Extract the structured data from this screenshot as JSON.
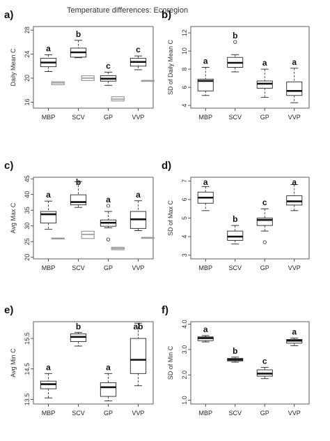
{
  "figure_title": "Temperature differences: Ecoregion",
  "chart_data": [
    {
      "panel": "a)",
      "type": "box",
      "ylabel": "Daily Mean C",
      "categories": [
        "MBP",
        "SCV",
        "GP",
        "VVP"
      ],
      "ylim": [
        15.0,
        28.6
      ],
      "yticks": [
        16,
        20,
        24,
        28
      ],
      "boxes": [
        {
          "min": 21.1,
          "q1": 21.9,
          "median": 22.6,
          "q3": 23.3,
          "max": 23.9,
          "outliers": []
        },
        {
          "min": 23.4,
          "q1": 23.5,
          "median": 24.3,
          "q3": 25.0,
          "max": 26.3,
          "outliers": []
        },
        {
          "min": 18.8,
          "q1": 19.5,
          "median": 19.9,
          "q3": 20.4,
          "max": 21.0,
          "outliers": []
        },
        {
          "min": 21.4,
          "q1": 22.0,
          "median": 22.7,
          "q3": 23.3,
          "max": 23.7,
          "outliers": []
        }
      ],
      "reference_boxes": [
        {
          "q1": 18.9,
          "median": 19.2,
          "q3": 19.4
        },
        {
          "q1": 19.6,
          "median": 20.0,
          "q3": 20.4
        },
        {
          "q1": 16.2,
          "median": 16.5,
          "q3": 16.9
        },
        {
          "q1": 19.6,
          "median": 19.6,
          "q3": 19.6
        }
      ],
      "letters": [
        "a",
        "b",
        "c",
        "c"
      ]
    },
    {
      "panel": "b)",
      "type": "box",
      "ylabel": "SD of Daily Mean C",
      "categories": [
        "MBP",
        "SCV",
        "GP",
        "VVP"
      ],
      "ylim": [
        3.7,
        12.7
      ],
      "yticks": [
        4,
        6,
        8,
        10,
        12
      ],
      "boxes": [
        {
          "min": 5.1,
          "q1": 5.6,
          "median": 6.7,
          "q3": 6.9,
          "max": 8.2,
          "outliers": []
        },
        {
          "min": 7.7,
          "q1": 8.2,
          "median": 8.7,
          "q3": 9.3,
          "max": 9.6,
          "outliers": [
            11.0
          ]
        },
        {
          "min": 4.9,
          "q1": 5.9,
          "median": 6.4,
          "q3": 6.7,
          "max": 8.0,
          "outliers": []
        },
        {
          "min": 4.3,
          "q1": 5.1,
          "median": 5.6,
          "q3": 6.6,
          "max": 8.1,
          "outliers": []
        }
      ],
      "letters": [
        "a",
        "b",
        "a",
        "a"
      ]
    },
    {
      "panel": "c)",
      "type": "box",
      "ylabel": "Avg Max C",
      "categories": [
        "MBP",
        "SCV",
        "GP",
        "VVP"
      ],
      "ylim": [
        19.5,
        45.5
      ],
      "yticks": [
        20,
        25,
        30,
        35,
        40,
        45
      ],
      "boxes": [
        {
          "min": 28.9,
          "q1": 30.9,
          "median": 33.7,
          "q3": 34.6,
          "max": 37.9,
          "outliers": []
        },
        {
          "min": 35.9,
          "q1": 36.7,
          "median": 37.6,
          "q3": 39.9,
          "max": 44.1,
          "outliers": []
        },
        {
          "min": 29.4,
          "q1": 29.9,
          "median": 31.0,
          "q3": 31.9,
          "max": 34.6,
          "outliers": [
            36.4,
            25.7
          ]
        },
        {
          "min": 28.5,
          "q1": 29.2,
          "median": 32.1,
          "q3": 34.6,
          "max": 38.0,
          "outliers": []
        }
      ],
      "reference_boxes": [
        {
          "q1": 26.1,
          "median": 26.1,
          "q3": 26.1
        },
        {
          "q1": 26.0,
          "median": 27.3,
          "q3": 28.3
        },
        {
          "q1": 22.4,
          "median": 22.8,
          "q3": 23.2
        },
        {
          "q1": 26.3,
          "median": 26.3,
          "q3": 26.3
        }
      ],
      "letters": [
        "a",
        "b",
        "a",
        "a"
      ]
    },
    {
      "panel": "d)",
      "type": "box",
      "ylabel": "SD of Max C",
      "categories": [
        "MBP",
        "SCV",
        "GP",
        "VVP"
      ],
      "ylim": [
        2.8,
        7.2
      ],
      "yticks": [
        3,
        4,
        5,
        6,
        7
      ],
      "boxes": [
        {
          "min": 5.4,
          "q1": 5.8,
          "median": 6.1,
          "q3": 6.4,
          "max": 6.7,
          "outliers": []
        },
        {
          "min": 3.6,
          "q1": 3.8,
          "median": 4.0,
          "q3": 4.3,
          "max": 4.6,
          "outliers": []
        },
        {
          "min": 4.3,
          "q1": 4.6,
          "median": 4.9,
          "q3": 5.0,
          "max": 5.5,
          "outliers": [
            3.7
          ]
        },
        {
          "min": 5.4,
          "q1": 5.7,
          "median": 5.9,
          "q3": 6.2,
          "max": 6.8,
          "outliers": []
        }
      ],
      "letters": [
        "a",
        "b",
        "c",
        "a"
      ]
    },
    {
      "panel": "e)",
      "type": "box",
      "ylabel": "Avg Min C",
      "categories": [
        "MBP",
        "SCV",
        "GP",
        "VVP"
      ],
      "ylim": [
        13.35,
        16.05
      ],
      "yticks": [
        13.5,
        14.5,
        15.5
      ],
      "yticklabels": [
        "13.5",
        "14.5",
        "15.5"
      ],
      "boxes": [
        {
          "min": 13.55,
          "q1": 13.85,
          "median": 14.0,
          "q3": 14.1,
          "max": 14.35,
          "outliers": []
        },
        {
          "min": 15.25,
          "q1": 15.4,
          "median": 15.55,
          "q3": 15.65,
          "max": 15.7,
          "outliers": []
        },
        {
          "min": 13.45,
          "q1": 13.6,
          "median": 13.9,
          "q3": 14.05,
          "max": 14.35,
          "outliers": []
        },
        {
          "min": 13.95,
          "q1": 14.35,
          "median": 14.8,
          "q3": 15.5,
          "max": 16.0,
          "outliers": []
        }
      ],
      "letters": [
        "a",
        "b",
        "a",
        "ab"
      ]
    },
    {
      "panel": "f)",
      "type": "box",
      "ylabel": "SD of Min C",
      "categories": [
        "MBP",
        "SCV",
        "GP",
        "VVP"
      ],
      "ylim": [
        0.85,
        4.1
      ],
      "yticks": [
        1.0,
        2.0,
        3.0,
        4.0
      ],
      "yticklabels": [
        "1.0",
        "2.0",
        "3.0",
        "4.0"
      ],
      "boxes": [
        {
          "min": 3.3,
          "q1": 3.35,
          "median": 3.45,
          "q3": 3.5,
          "max": 3.55,
          "outliers": []
        },
        {
          "min": 2.5,
          "q1": 2.55,
          "median": 2.6,
          "q3": 2.65,
          "max": 2.7,
          "outliers": []
        },
        {
          "min": 1.85,
          "q1": 1.95,
          "median": 2.05,
          "q3": 2.2,
          "max": 2.3,
          "outliers": []
        },
        {
          "min": 3.15,
          "q1": 3.25,
          "median": 3.35,
          "q3": 3.4,
          "max": 3.45,
          "outliers": []
        }
      ],
      "letters": [
        "a",
        "b",
        "c",
        "a"
      ]
    }
  ]
}
